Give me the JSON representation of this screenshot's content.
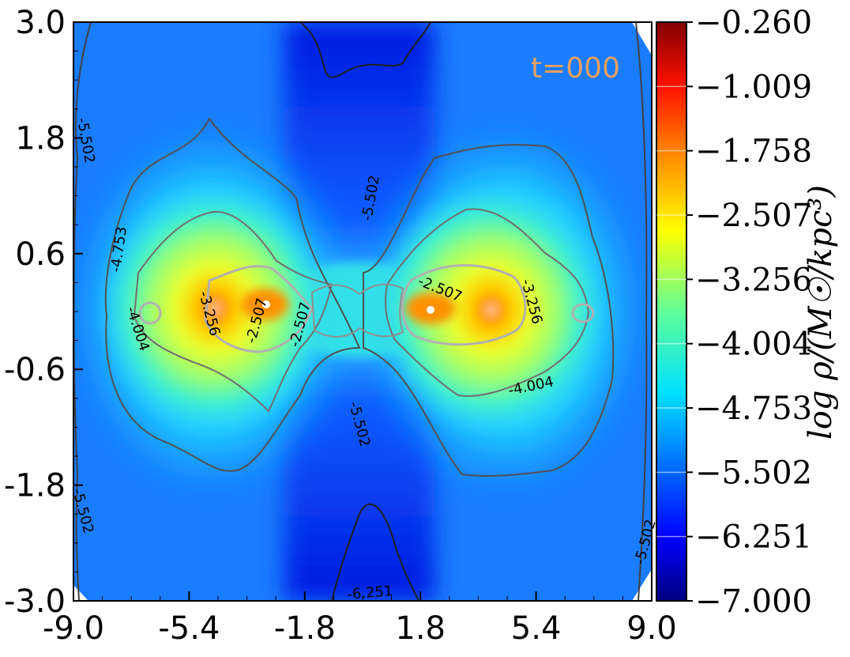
{
  "chart_data": {
    "type": "heatmap",
    "title": "",
    "annotation": "t=000",
    "annotation_color": "#e8a060",
    "x": {
      "ticks": [
        "-9.0",
        "-5.4",
        "-1.8",
        "1.8",
        "5.4",
        "9.0"
      ],
      "range": [
        -9.0,
        9.0
      ]
    },
    "y": {
      "ticks": [
        "3.0",
        "1.8",
        "0.6",
        "-0.6",
        "-1.8",
        "-3.0"
      ],
      "range": [
        -3.0,
        3.0
      ]
    },
    "colorbar": {
      "label": "log ρ/(M☉/kpc³)",
      "colormap": "jet",
      "range": [
        -7.0,
        -0.26
      ],
      "ticks": [
        "−0.260",
        "−1.009",
        "−1.758",
        "−2.507",
        "−3.256",
        "−4.004",
        "−4.753",
        "−5.502",
        "−6.251",
        "−7.000"
      ]
    },
    "contour_levels": [
      "-2.507",
      "-3.256",
      "-4.004",
      "-4.753",
      "-5.502",
      "-6.251"
    ],
    "contour_labels": [
      {
        "text": "-5.502",
        "level": -5.502
      },
      {
        "text": "-4.753",
        "level": -4.753
      },
      {
        "text": "-4.004",
        "level": -4.004
      },
      {
        "text": "-3.256",
        "level": -3.256
      },
      {
        "text": "-2.507",
        "level": -2.507
      },
      {
        "text": "-2.507",
        "level": -2.507
      },
      {
        "text": "-5.502",
        "level": -5.502
      },
      {
        "text": "-2.507",
        "level": -2.507
      },
      {
        "text": "-3.256",
        "level": -3.256
      },
      {
        "text": "-4.004",
        "level": -4.004
      },
      {
        "text": "-5.502",
        "level": -5.502
      },
      {
        "text": "-5.502",
        "level": -5.502
      },
      {
        "text": "-5.502",
        "level": -5.502
      },
      {
        "text": "-6.251",
        "level": -6.251
      }
    ]
  }
}
